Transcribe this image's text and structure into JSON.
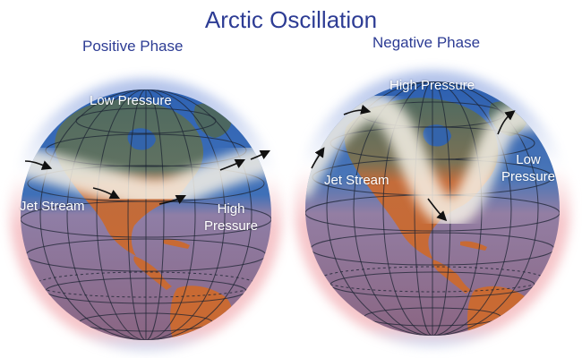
{
  "title": "Arctic Oscillation",
  "positive": {
    "heading": "Positive Phase",
    "low_label": "Low Pressure",
    "jet_label": "Jet Stream",
    "high_label_line1": "High",
    "high_label_line2": "Pressure"
  },
  "negative": {
    "heading": "Negative Phase",
    "high_label": "High Pressure",
    "jet_label": "Jet Stream",
    "low_label_line1": "Low",
    "low_label_line2": "Pressure"
  },
  "colors": {
    "title": "#2d3c94",
    "ocean_north": "#2f63b4",
    "ocean_south": "#9a6f8c",
    "land_north": "#556b61",
    "land_south": "#c46a3a",
    "grid": "#1d2433",
    "jet": "#f6f1e6",
    "halo_warm": "#f3b2b8",
    "halo_cool": "#9bb3e4"
  }
}
